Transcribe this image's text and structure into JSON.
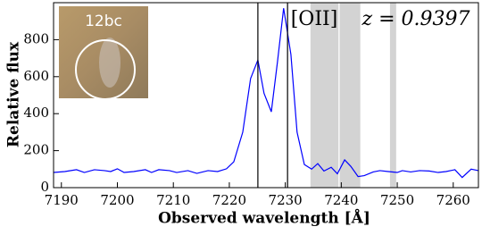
{
  "chart_data": {
    "type": "line",
    "xlabel": "Observed wavelength [Å]",
    "ylabel": "Relative flux",
    "annotations": [
      "[OII]",
      "z = 0.9397"
    ],
    "inset_label": "12bc",
    "color": "#0000ff",
    "x": [
      7188.6,
      7190.6,
      7192.7,
      7194.1,
      7195.9,
      7197.7,
      7198.8,
      7200.0,
      7201.2,
      7202.9,
      7205.0,
      7206.1,
      7207.4,
      7209.3,
      7210.6,
      7212.6,
      7214.2,
      7216.2,
      7217.9,
      7219.5,
      7220.8,
      7222.4,
      7223.8,
      7225.1,
      7226.2,
      7227.5,
      7228.6,
      7229.7,
      7231.0,
      7232.1,
      7233.4,
      7234.7,
      7235.8,
      7236.9,
      7238.2,
      7239.3,
      7240.6,
      7241.7,
      7243.0,
      7244.1,
      7245.7,
      7246.9,
      7248.4,
      7250.0,
      7250.9,
      7252.4,
      7254.0,
      7255.7,
      7257.3,
      7258.7,
      7260.3,
      7261.6,
      7263.2,
      7264.5
    ],
    "values": [
      82,
      87,
      97,
      82,
      97,
      92,
      87,
      102,
      82,
      87,
      97,
      82,
      97,
      92,
      82,
      92,
      77,
      92,
      87,
      102,
      140,
      300,
      590,
      690,
      510,
      410,
      680,
      970,
      720,
      300,
      125,
      100,
      130,
      90,
      110,
      75,
      150,
      115,
      60,
      65,
      85,
      92,
      87,
      82,
      92,
      85,
      92,
      90,
      82,
      87,
      97,
      55,
      100,
      92
    ],
    "vlines": [
      7225.1,
      7230.4
    ],
    "shaded_regions": [
      [
        7234.5,
        7239.5
      ],
      [
        7239.7,
        7243.4
      ],
      [
        7248.7,
        7249.8
      ]
    ],
    "xlim": [
      7188.6,
      7264.5
    ],
    "ylim": [
      0,
      1000
    ],
    "xticks": [
      7190,
      7200,
      7210,
      7220,
      7230,
      7240,
      7250,
      7260
    ],
    "yticks": [
      0,
      200,
      400,
      600,
      800
    ]
  }
}
